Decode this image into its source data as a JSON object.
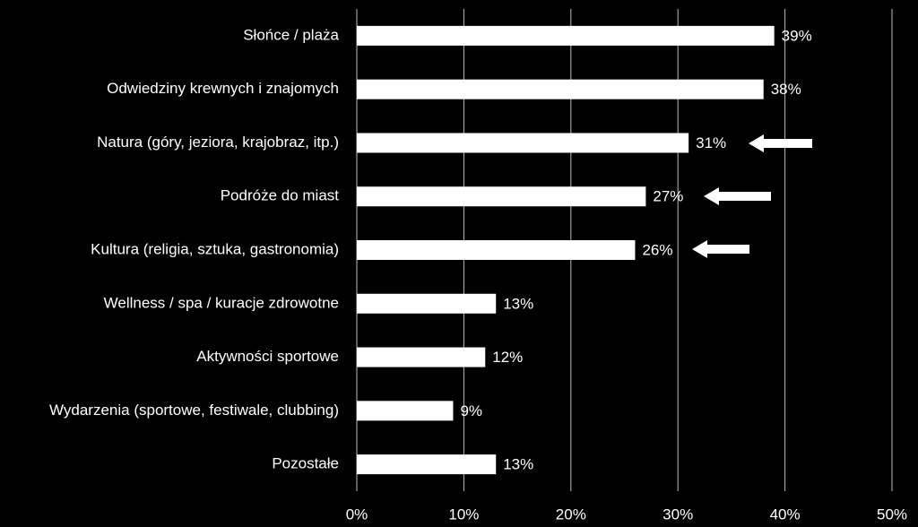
{
  "chart_data": {
    "type": "bar",
    "orientation": "horizontal",
    "categories": [
      "Słońce / plaża",
      "Odwiedziny krewnych i znajomych",
      "Natura (góry, jeziora, krajobraz, itp.)",
      "Podróże do miast",
      "Kultura (religia, sztuka, gastronomia)",
      "Wellness / spa / kuracje zdrowotne",
      "Aktywności sportowe",
      "Wydarzenia (sportowe, festiwale, clubbing)",
      "Pozostałe"
    ],
    "values": [
      39,
      38,
      31,
      27,
      26,
      13,
      12,
      9,
      13
    ],
    "value_labels": [
      "39%",
      "38%",
      "31%",
      "27%",
      "26%",
      "13%",
      "12%",
      "9%",
      "13%"
    ],
    "color": "#ffffff",
    "xlim": [
      0,
      50
    ],
    "xticks": [
      {
        "value": 0,
        "label": "0%"
      },
      {
        "value": 10,
        "label": "10%"
      },
      {
        "value": 20,
        "label": "20%"
      },
      {
        "value": 30,
        "label": "30%"
      },
      {
        "value": 40,
        "label": "40%"
      },
      {
        "value": 50,
        "label": "50%"
      }
    ],
    "grid": true
  }
}
